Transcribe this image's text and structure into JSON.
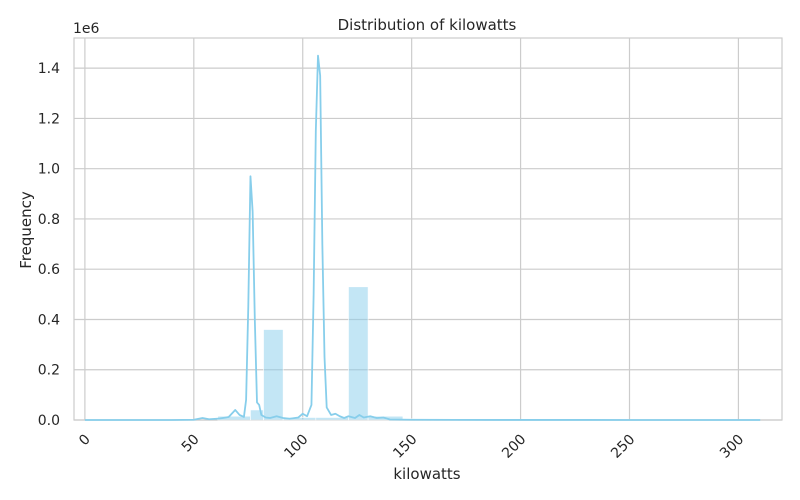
{
  "chart_data": {
    "type": "histogram",
    "title": "Distribution of kilowatts",
    "xlabel": "kilowatts",
    "ylabel": "Frequency",
    "y_offset_label": "1e6",
    "xlim": [
      -5,
      320
    ],
    "ylim": [
      0,
      1520000
    ],
    "x_ticks": [
      0,
      50,
      100,
      150,
      200,
      250,
      300
    ],
    "x_tick_labels": [
      "0",
      "50",
      "100",
      "150",
      "200",
      "250",
      "300"
    ],
    "y_ticks": [
      0,
      200000,
      400000,
      600000,
      800000,
      1000000,
      1200000,
      1400000
    ],
    "y_tick_labels": [
      "0.0",
      "0.2",
      "0.4",
      "0.6",
      "0.8",
      "1.0",
      "1.2",
      "1.4"
    ],
    "grid": true,
    "bar_color": "#87CEEB",
    "line_color": "#87CEEB",
    "bins": [
      {
        "x0": 61,
        "x1": 76,
        "value": 15000
      },
      {
        "x0": 76,
        "x1": 82,
        "value": 40000
      },
      {
        "x0": 82,
        "x1": 91,
        "value": 360000
      },
      {
        "x0": 91,
        "x1": 106,
        "value": 10000
      },
      {
        "x0": 106,
        "x1": 121,
        "value": 10000
      },
      {
        "x0": 121,
        "x1": 130,
        "value": 530000
      },
      {
        "x0": 130,
        "x1": 146,
        "value": 15000
      },
      {
        "x0": 146,
        "x1": 160,
        "value": 5000
      },
      {
        "x0": 160,
        "x1": 175,
        "value": 1000
      },
      {
        "x0": 175,
        "x1": 190,
        "value": 800
      },
      {
        "x0": 190,
        "x1": 205,
        "value": 500
      },
      {
        "x0": 205,
        "x1": 220,
        "value": 300
      },
      {
        "x0": 220,
        "x1": 235,
        "value": 300
      },
      {
        "x0": 235,
        "x1": 250,
        "value": 200
      }
    ],
    "kde": [
      [
        0,
        0
      ],
      [
        20,
        0
      ],
      [
        40,
        0
      ],
      [
        50,
        1000
      ],
      [
        54,
        8000
      ],
      [
        57,
        3000
      ],
      [
        62,
        6000
      ],
      [
        66,
        12000
      ],
      [
        69,
        40000
      ],
      [
        71,
        20000
      ],
      [
        73,
        12000
      ],
      [
        74,
        80000
      ],
      [
        75,
        450000
      ],
      [
        76,
        970000
      ],
      [
        77,
        830000
      ],
      [
        78,
        400000
      ],
      [
        79,
        70000
      ],
      [
        80,
        60000
      ],
      [
        81,
        20000
      ],
      [
        83,
        10000
      ],
      [
        85,
        8000
      ],
      [
        88,
        15000
      ],
      [
        91,
        8000
      ],
      [
        94,
        5000
      ],
      [
        98,
        10000
      ],
      [
        100,
        25000
      ],
      [
        102,
        15000
      ],
      [
        104,
        60000
      ],
      [
        105,
        500000
      ],
      [
        106,
        1150000
      ],
      [
        107,
        1450000
      ],
      [
        108,
        1370000
      ],
      [
        109,
        700000
      ],
      [
        110,
        250000
      ],
      [
        111,
        50000
      ],
      [
        113,
        20000
      ],
      [
        115,
        25000
      ],
      [
        117,
        15000
      ],
      [
        119,
        8000
      ],
      [
        121,
        15000
      ],
      [
        124,
        8000
      ],
      [
        126,
        20000
      ],
      [
        128,
        10000
      ],
      [
        131,
        15000
      ],
      [
        134,
        8000
      ],
      [
        137,
        10000
      ],
      [
        140,
        2000
      ],
      [
        150,
        1000
      ],
      [
        170,
        500
      ],
      [
        190,
        300
      ],
      [
        210,
        300
      ],
      [
        230,
        200
      ],
      [
        250,
        100
      ],
      [
        270,
        0
      ],
      [
        300,
        0
      ],
      [
        310,
        0
      ]
    ]
  }
}
